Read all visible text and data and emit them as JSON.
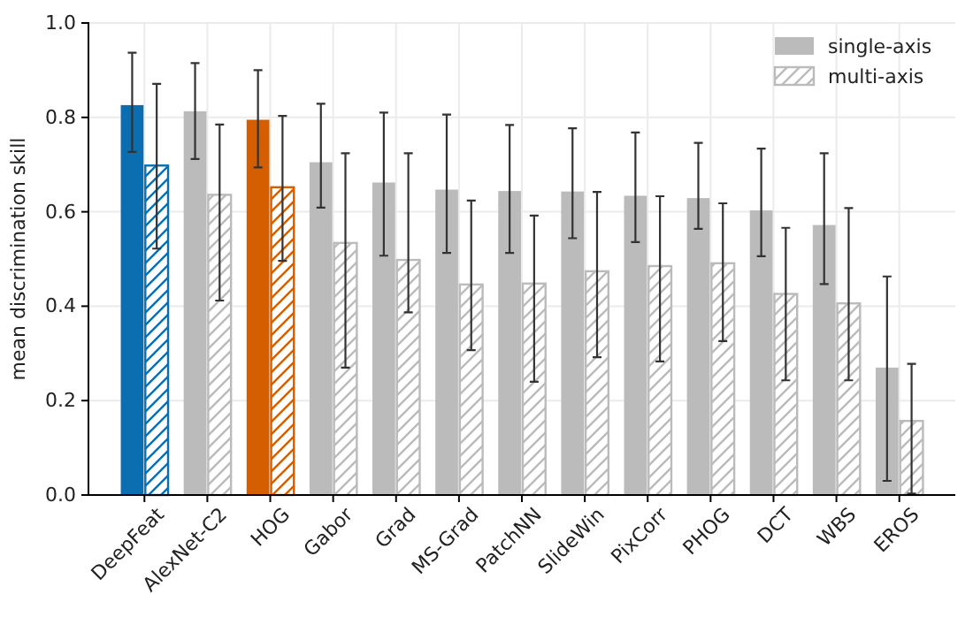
{
  "chart_data": {
    "type": "bar",
    "ylabel": "mean discrimination skill",
    "categories": [
      "DeepFeat",
      "AlexNet-C2",
      "HOG",
      "Gabor",
      "Grad",
      "MS-Grad",
      "PatchNN",
      "SlideWin",
      "PixCorr",
      "PHOG",
      "DCT",
      "WBS",
      "EROS"
    ],
    "series": [
      {
        "name": "single-axis",
        "color": "#bbbbbb",
        "colors": [
          "#0a6eb0",
          "#bbbbbb",
          "#d55e00",
          "#bbbbbb",
          "#bbbbbb",
          "#bbbbbb",
          "#bbbbbb",
          "#bbbbbb",
          "#bbbbbb",
          "#bbbbbb",
          "#bbbbbb",
          "#bbbbbb",
          "#bbbbbb"
        ],
        "values": [
          0.826,
          0.813,
          0.795,
          0.705,
          0.662,
          0.647,
          0.644,
          0.643,
          0.634,
          0.629,
          0.603,
          0.572,
          0.27
        ],
        "errors": [
          [
            0.727,
            0.937
          ],
          [
            0.712,
            0.915
          ],
          [
            0.694,
            0.9
          ],
          [
            0.609,
            0.829
          ],
          [
            0.507,
            0.81
          ],
          [
            0.513,
            0.806
          ],
          [
            0.513,
            0.784
          ],
          [
            0.544,
            0.777
          ],
          [
            0.536,
            0.768
          ],
          [
            0.564,
            0.746
          ],
          [
            0.506,
            0.734
          ],
          [
            0.447,
            0.724
          ],
          [
            0.03,
            0.463
          ]
        ]
      },
      {
        "name": "multi-axis",
        "color": "#bbbbbb",
        "colors": [
          "#0a6eb0",
          "#bbbbbb",
          "#d55e00",
          "#bbbbbb",
          "#bbbbbb",
          "#bbbbbb",
          "#bbbbbb",
          "#bbbbbb",
          "#bbbbbb",
          "#bbbbbb",
          "#bbbbbb",
          "#bbbbbb",
          "#bbbbbb"
        ],
        "values": [
          0.698,
          0.636,
          0.652,
          0.534,
          0.498,
          0.446,
          0.448,
          0.474,
          0.485,
          0.491,
          0.426,
          0.406,
          0.157
        ],
        "errors": [
          [
            0.522,
            0.871
          ],
          [
            0.412,
            0.785
          ],
          [
            0.496,
            0.803
          ],
          [
            0.27,
            0.724
          ],
          [
            0.387,
            0.724
          ],
          [
            0.307,
            0.624
          ],
          [
            0.24,
            0.592
          ],
          [
            0.292,
            0.642
          ],
          [
            0.283,
            0.633
          ],
          [
            0.326,
            0.618
          ],
          [
            0.243,
            0.566
          ],
          [
            0.243,
            0.608
          ],
          [
            0.003,
            0.278
          ]
        ]
      }
    ],
    "ylim": [
      0,
      1
    ],
    "yticks": [
      {
        "value": 0,
        "label": "0.0"
      },
      {
        "value": 0.2,
        "label": "0.2"
      },
      {
        "value": 0.4,
        "label": "0.4"
      },
      {
        "value": 0.6,
        "label": "0.6"
      },
      {
        "value": 0.8,
        "label": "0.8"
      },
      {
        "value": 1,
        "label": "1.0"
      }
    ],
    "grid": true,
    "legend": "top right"
  }
}
